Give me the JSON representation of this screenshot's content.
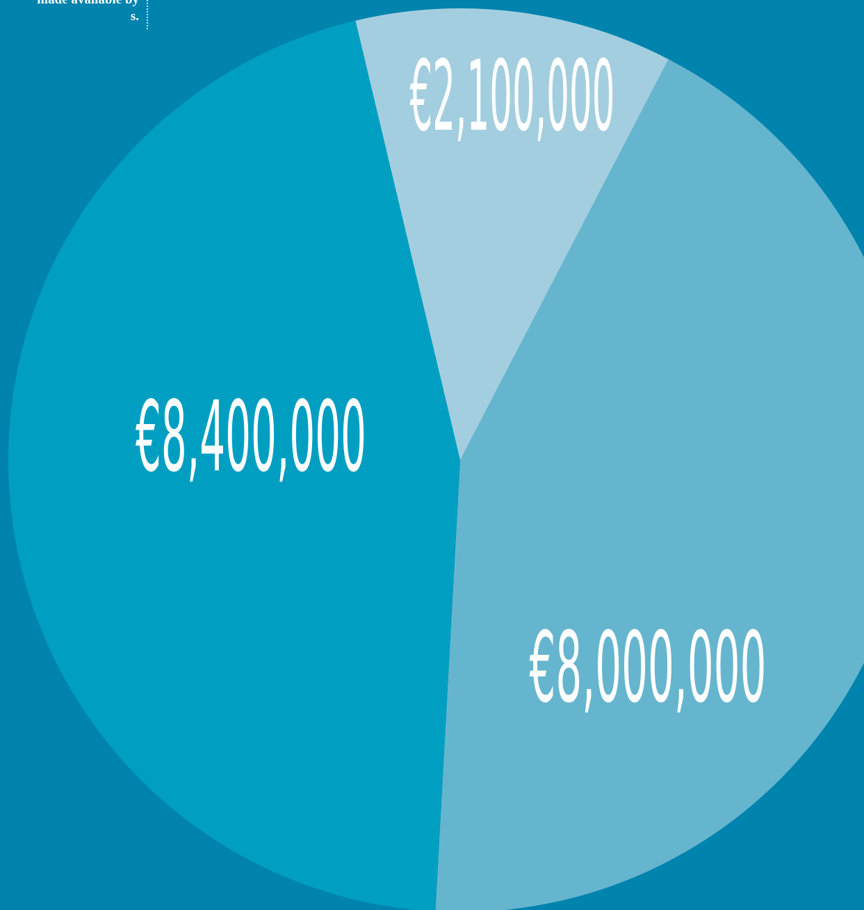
{
  "intro_text": [
    "made available by",
    "s."
  ],
  "chart_data": {
    "type": "pie",
    "categories": [
      null,
      null,
      null
    ],
    "values": [
      2100000,
      8000000,
      8400000
    ],
    "value_labels": [
      "€2,100,000",
      "€8,000,000",
      "€8,400,000"
    ],
    "colors": [
      "#a3cedf",
      "#66b5ce",
      "#009fc2"
    ]
  }
}
